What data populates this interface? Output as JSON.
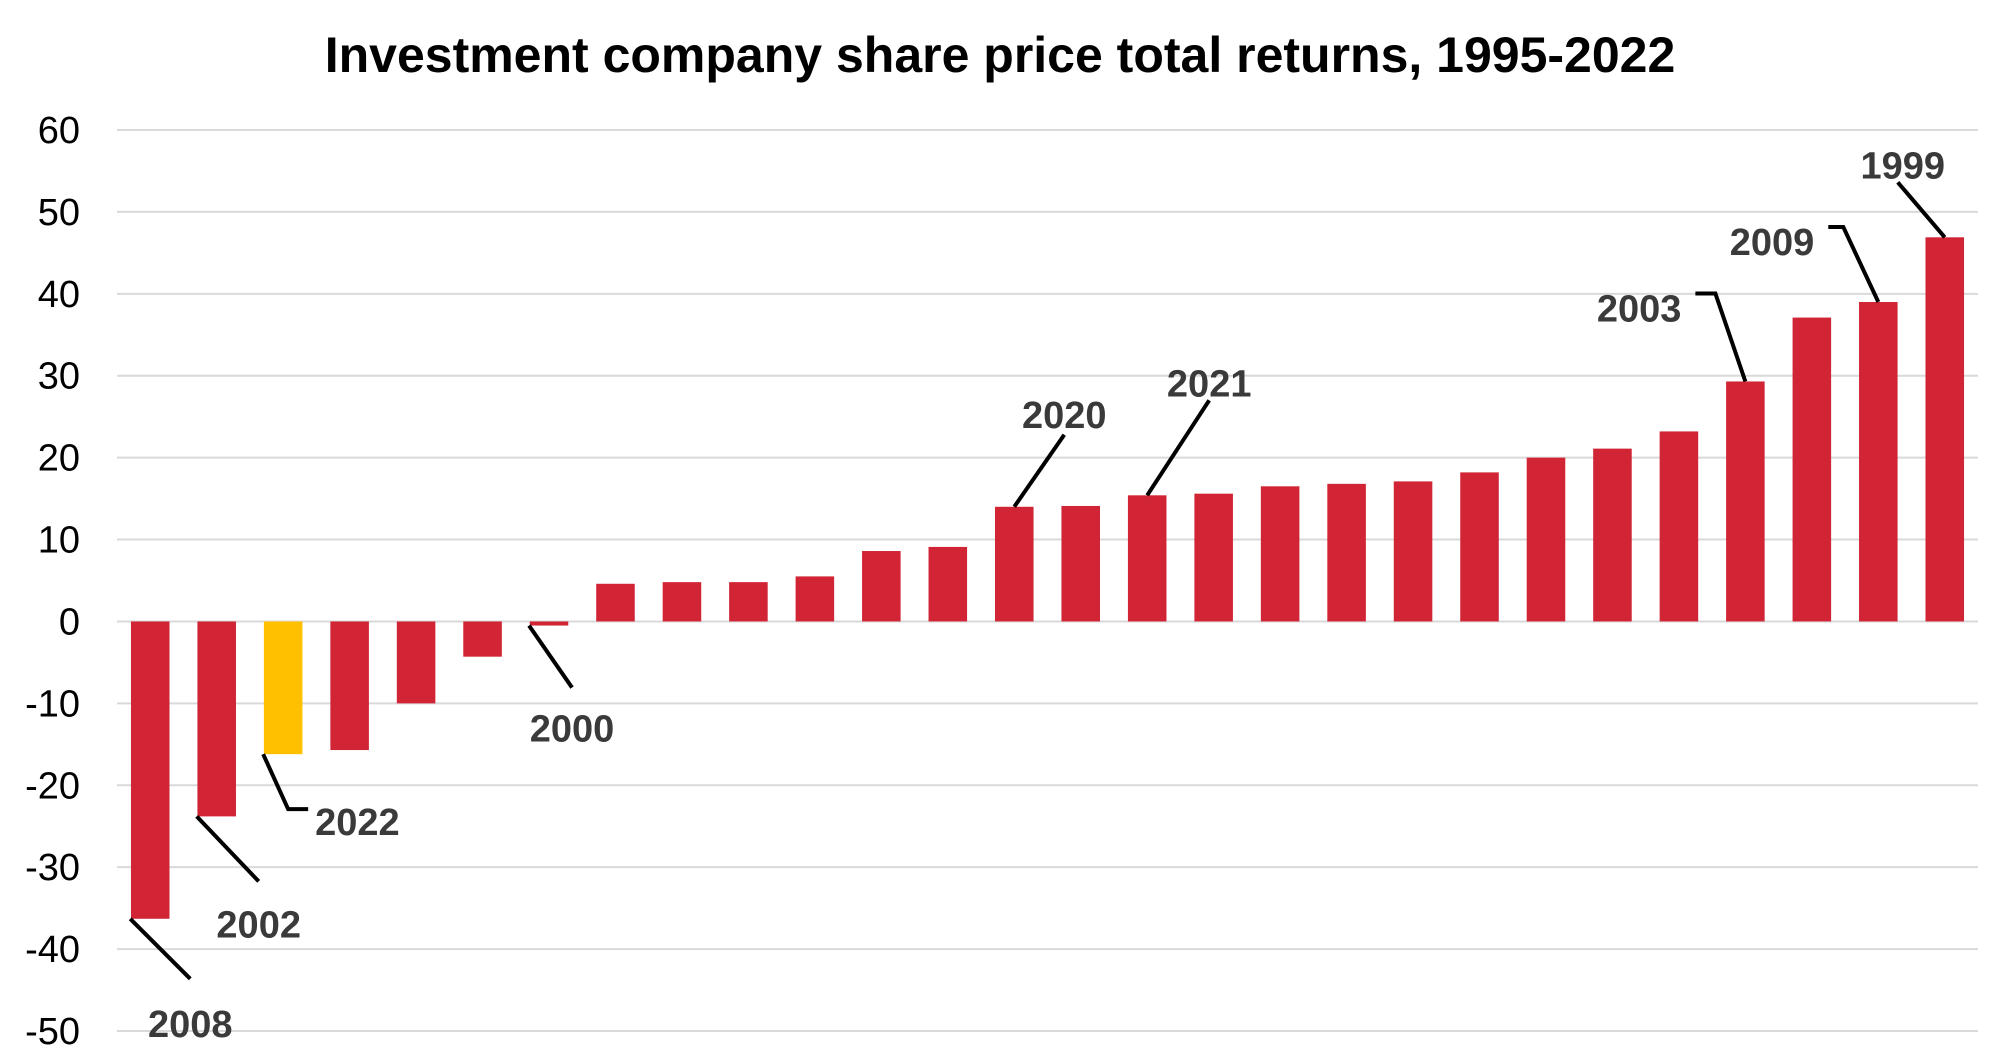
{
  "chart_data": {
    "type": "bar",
    "title": "Investment company share price total returns, 1995-2022",
    "xlabel": "",
    "ylabel": "",
    "ylim": [
      -50,
      60
    ],
    "yticks": [
      60,
      50,
      40,
      30,
      20,
      10,
      0,
      -10,
      -20,
      -30,
      -40,
      -50
    ],
    "grid": true,
    "legend": "none",
    "colors": {
      "default": "#d12536",
      "highlight": "#ffc000",
      "gridline": "#d9d9d9",
      "callout_text": "#3a3a3a"
    },
    "bars": [
      {
        "value": -36.3,
        "label": "2008"
      },
      {
        "value": -23.8,
        "label": "2002"
      },
      {
        "value": -16.2,
        "label": "2022",
        "highlight": true
      },
      {
        "value": -15.7
      },
      {
        "value": -10.0
      },
      {
        "value": -4.3
      },
      {
        "value": -0.5,
        "label": "2000"
      },
      {
        "value": 4.6
      },
      {
        "value": 4.8
      },
      {
        "value": 4.8
      },
      {
        "value": 5.5
      },
      {
        "value": 8.6
      },
      {
        "value": 9.1
      },
      {
        "value": 14.0,
        "label": "2020"
      },
      {
        "value": 14.1
      },
      {
        "value": 15.4,
        "label": "2021"
      },
      {
        "value": 15.6
      },
      {
        "value": 16.5
      },
      {
        "value": 16.8
      },
      {
        "value": 17.1
      },
      {
        "value": 18.2
      },
      {
        "value": 20.0
      },
      {
        "value": 21.1
      },
      {
        "value": 23.2
      },
      {
        "value": 29.3,
        "label": "2003"
      },
      {
        "value": 37.1
      },
      {
        "value": 39.0,
        "label": "2009"
      },
      {
        "value": 46.9,
        "label": "1999"
      }
    ]
  }
}
